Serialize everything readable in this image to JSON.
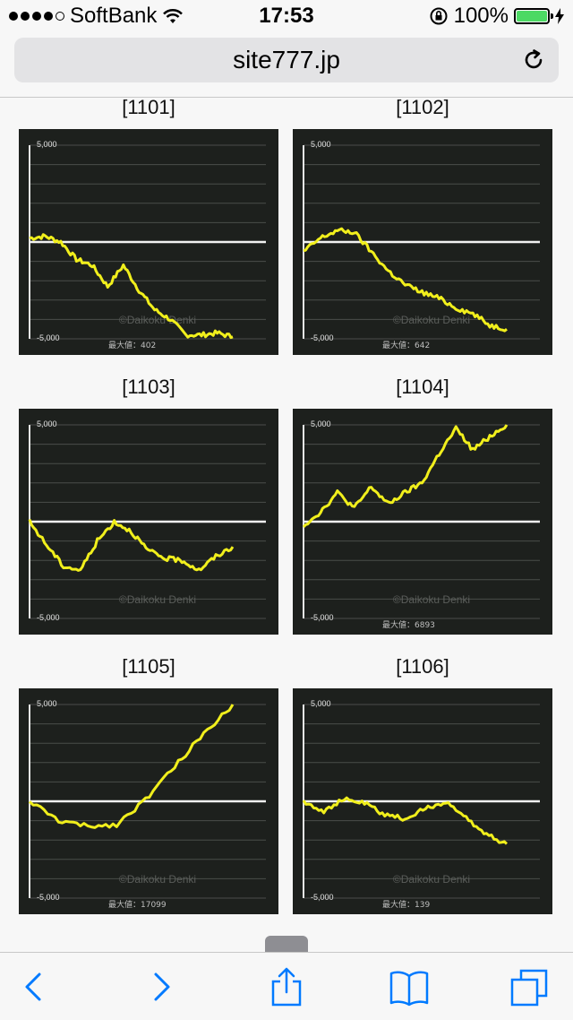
{
  "status": {
    "carrier": "SoftBank",
    "time": "17:53",
    "battery": "100%"
  },
  "browser": {
    "url": "site777.jp"
  },
  "graphs": [
    {
      "title": "[1101]",
      "top_label": "5,000",
      "bottom_label": "-5,000",
      "max_text": "最大値：402",
      "watermark": "©Daikoku Denki",
      "chart_data": {
        "type": "line",
        "ylim": [
          -5000,
          5000
        ],
        "values": [
          200,
          300,
          0,
          -900,
          -1200,
          -2300,
          -1200,
          -2500,
          -3500,
          -4000,
          -4800,
          -4800,
          -4700,
          -4900
        ]
      }
    },
    {
      "title": "[1102]",
      "top_label": "5,000",
      "bottom_label": "-5,000",
      "max_text": "最大値：642",
      "watermark": "©Daikoku Denki",
      "chart_data": {
        "type": "line",
        "ylim": [
          -5000,
          5000
        ],
        "values": [
          -500,
          200,
          600,
          500,
          -500,
          -1500,
          -2200,
          -2600,
          -2900,
          -3400,
          -3700,
          -4300,
          -4500
        ]
      }
    },
    {
      "title": "[1103]",
      "top_label": "5,000",
      "bottom_label": "-5,000",
      "max_text": "",
      "watermark": "©Daikoku Denki",
      "chart_data": {
        "type": "line",
        "ylim": [
          -5000,
          5000
        ],
        "values": [
          0,
          -1200,
          -2300,
          -2500,
          -1000,
          0,
          -500,
          -1500,
          -1900,
          -2000,
          -2500,
          -1800,
          -1300
        ]
      }
    },
    {
      "title": "[1104]",
      "top_label": "5,000",
      "bottom_label": "-5,000",
      "max_text": "最大値：6893",
      "watermark": "©Daikoku Denki",
      "chart_data": {
        "type": "line",
        "ylim": [
          -5000,
          5000
        ],
        "values": [
          -200,
          500,
          1500,
          700,
          1800,
          900,
          1500,
          2000,
          3500,
          4800,
          3700,
          4400,
          5000
        ]
      }
    },
    {
      "title": "[1105]",
      "top_label": "5,000",
      "bottom_label": "-5,000",
      "max_text": "最大値：17099",
      "watermark": "©Daikoku Denki",
      "chart_data": {
        "type": "line",
        "ylim": [
          -5000,
          5000
        ],
        "values": [
          0,
          -1000,
          -1300,
          -1200,
          100,
          1800,
          3500,
          5000
        ]
      }
    },
    {
      "title": "[1106]",
      "top_label": "5,000",
      "bottom_label": "-5,000",
      "max_text": "最大値：139",
      "watermark": "©Daikoku Denki",
      "chart_data": {
        "type": "line",
        "ylim": [
          -5000,
          5000
        ],
        "values": [
          0,
          -500,
          100,
          -100,
          -700,
          -900,
          -400,
          0,
          -900,
          -1700,
          -2200
        ]
      }
    }
  ],
  "toolbar": {
    "back": "back-icon",
    "forward": "forward-icon",
    "share": "share-icon",
    "bookmarks": "bookmarks-icon",
    "tabs": "tabs-icon"
  },
  "colors": {
    "accent": "#007aff",
    "graph_bg": "#1d201d",
    "line": "#f1ef1c"
  }
}
